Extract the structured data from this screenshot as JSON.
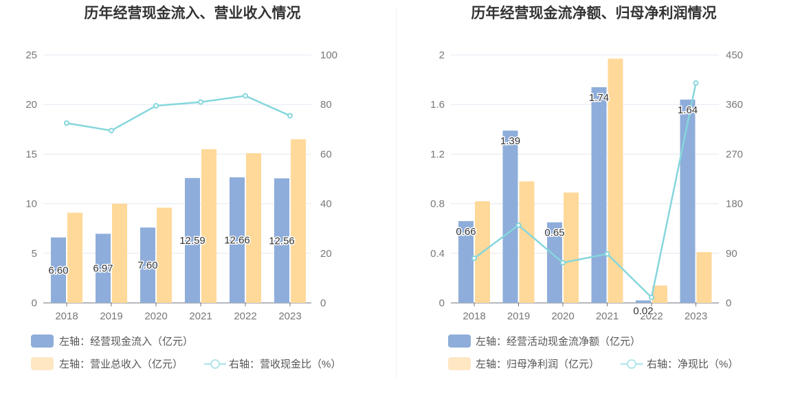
{
  "chart_data": [
    {
      "type": "bar",
      "title": "历年经营现金流入、营业收入情况",
      "categories": [
        "2018",
        "2019",
        "2020",
        "2021",
        "2022",
        "2023"
      ],
      "ylim": [
        0,
        25
      ],
      "yticks": [
        "0",
        "5",
        "10",
        "15",
        "20",
        "25"
      ],
      "y2lim": [
        0,
        100
      ],
      "y2ticks": [
        "0",
        "20",
        "40",
        "60",
        "80",
        "100"
      ],
      "grid": true,
      "legend_placement": "bottom-left",
      "series": [
        {
          "name": "左轴：经营现金流入（亿元）",
          "kind": "bar",
          "axis": "left",
          "color": "#8eadda",
          "values": [
            6.6,
            6.97,
            7.6,
            12.59,
            12.66,
            12.56
          ],
          "labels": [
            "6.60",
            "6.97",
            "7.60",
            "12.59",
            "12.66",
            "12.56"
          ]
        },
        {
          "name": "左轴：营业总收入（亿元）",
          "kind": "bar",
          "axis": "left",
          "color": "#ffd99a",
          "values": [
            9.1,
            10.0,
            9.6,
            15.5,
            15.1,
            16.5
          ]
        },
        {
          "name": "右轴：营收现金比（%）",
          "kind": "line",
          "axis": "right",
          "color": "#85d6dc",
          "values": [
            72.5,
            69.5,
            79.5,
            81,
            83.5,
            75.5
          ]
        }
      ]
    },
    {
      "type": "bar",
      "title": "历年经营现金流净额、归母净利润情况",
      "categories": [
        "2018",
        "2019",
        "2020",
        "2021",
        "2022",
        "2023"
      ],
      "ylim": [
        0,
        2
      ],
      "yticks": [
        "0",
        "0.4",
        "0.8",
        "1.2",
        "1.6",
        "2"
      ],
      "y2lim": [
        0,
        450
      ],
      "y2ticks": [
        "0",
        "90",
        "180",
        "270",
        "360",
        "450"
      ],
      "grid": true,
      "legend_placement": "bottom-left",
      "series": [
        {
          "name": "左轴：经营活动现金流净额（亿元）",
          "kind": "bar",
          "axis": "left",
          "color": "#8eadda",
          "values": [
            0.66,
            1.39,
            0.65,
            1.74,
            0.02,
            1.64
          ],
          "labels": [
            "0.66",
            "1.39",
            "0.65",
            "1.74",
            "0.02",
            "1.64"
          ]
        },
        {
          "name": "左轴：归母净利润（亿元）",
          "kind": "bar",
          "axis": "left",
          "color": "#ffd99a",
          "values": [
            0.82,
            0.98,
            0.89,
            1.97,
            0.14,
            0.41
          ]
        },
        {
          "name": "右轴：净现比（%）",
          "kind": "line",
          "axis": "right",
          "color": "#85d6dc",
          "values": [
            81,
            141,
            73,
            89,
            10,
            399
          ]
        }
      ]
    }
  ]
}
